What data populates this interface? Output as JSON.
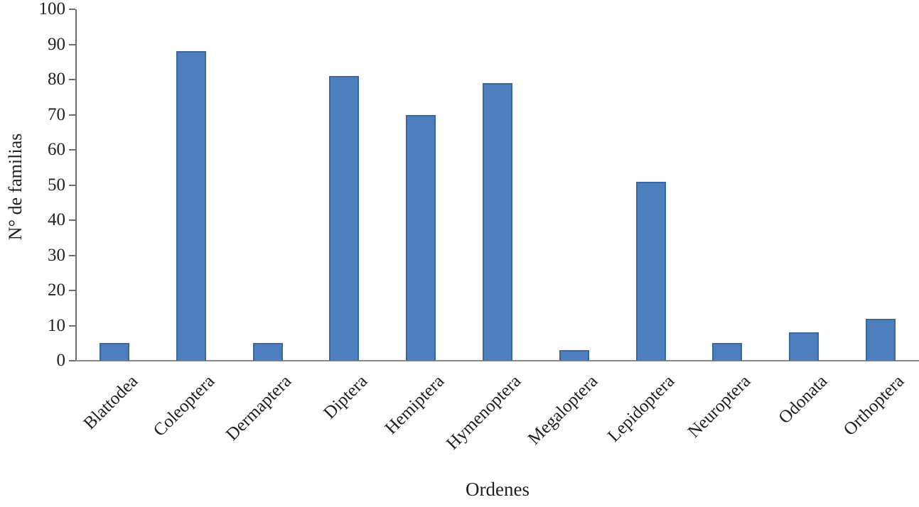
{
  "chart_data": {
    "type": "bar",
    "title": "",
    "xlabel": "Ordenes",
    "ylabel": "N° de familias",
    "categories": [
      "Blattodea",
      "Coleoptera",
      "Dermaptera",
      "Diptera",
      "Hemiptera",
      "Hymenoptera",
      "Megaloptera",
      "Lepidoptera",
      "Neuroptera",
      "Odonata",
      "Orthoptera"
    ],
    "values": [
      5,
      88,
      5,
      81,
      70,
      79,
      3,
      51,
      5,
      8,
      12
    ],
    "ylim": [
      0,
      100
    ],
    "yticks": [
      0,
      10,
      20,
      30,
      40,
      50,
      60,
      70,
      80,
      90,
      100
    ],
    "grid": false,
    "legend": false,
    "bar_color": "#4d7ebd",
    "bar_border_color": "#3c68a0",
    "axis_color": "#6d6d6d",
    "baseline_color": "#8a8a8a",
    "text_color": "#1f1f1f",
    "background_color": "#ffffff"
  }
}
